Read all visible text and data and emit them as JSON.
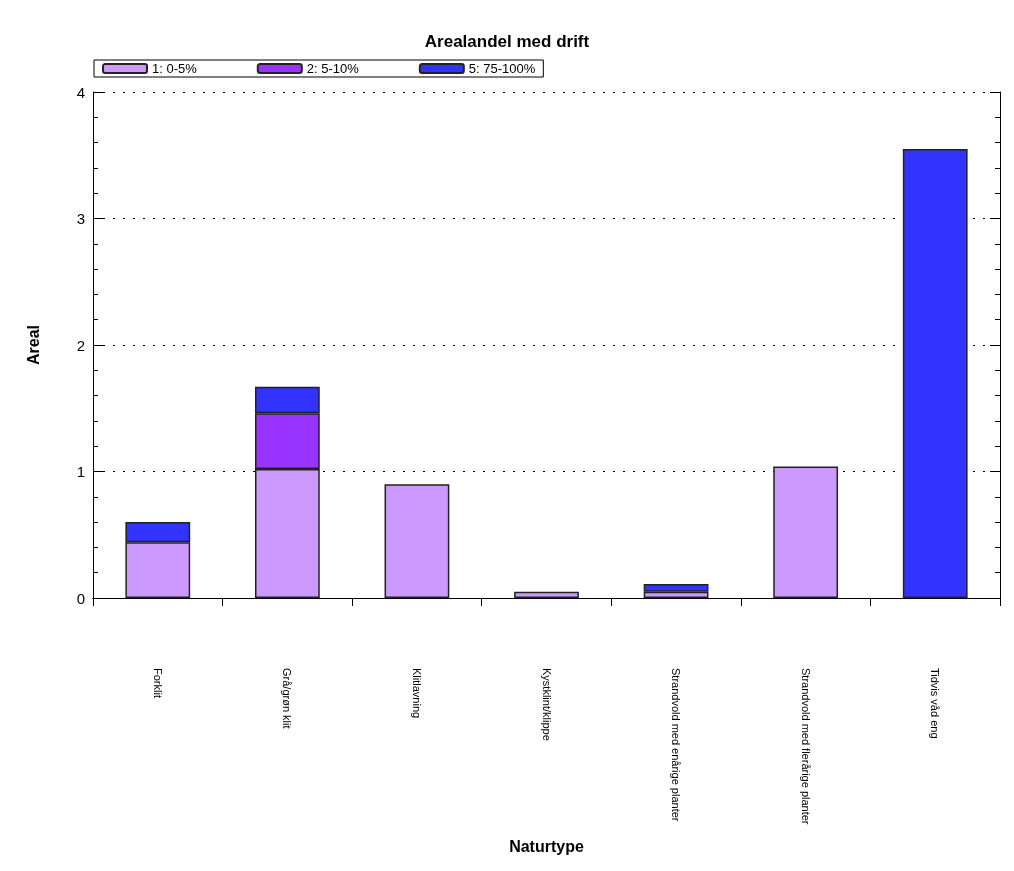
{
  "chart_data": {
    "type": "bar",
    "title": "Arealandel med drift",
    "xlabel": "Naturtype",
    "ylabel": "Areal",
    "categories": [
      "Forklit",
      "Grå/grøn klit",
      "Klitlavning",
      "Kystklint/klippe",
      "Strandvold med enårige planter",
      "Strandvold med flerårige planter",
      "Tidvis våd eng"
    ],
    "series": [
      {
        "name": "1: 0-5%",
        "color": "#cc99ff",
        "values": [
          0.44,
          1.02,
          0.9,
          0.05,
          0.05,
          1.04,
          null
        ]
      },
      {
        "name": "2: 5-10%",
        "color": "#9933ff",
        "values": [
          null,
          0.44,
          null,
          null,
          null,
          null,
          null
        ]
      },
      {
        "name": "5: 75-100%",
        "color": "#3333ff",
        "values": [
          0.16,
          0.21,
          null,
          null,
          0.06,
          null,
          3.55
        ]
      }
    ],
    "stacked": true,
    "ylim": [
      0,
      4
    ],
    "yticks": [
      0,
      1,
      2,
      3,
      4
    ],
    "grid": "y",
    "legend": "top left"
  }
}
